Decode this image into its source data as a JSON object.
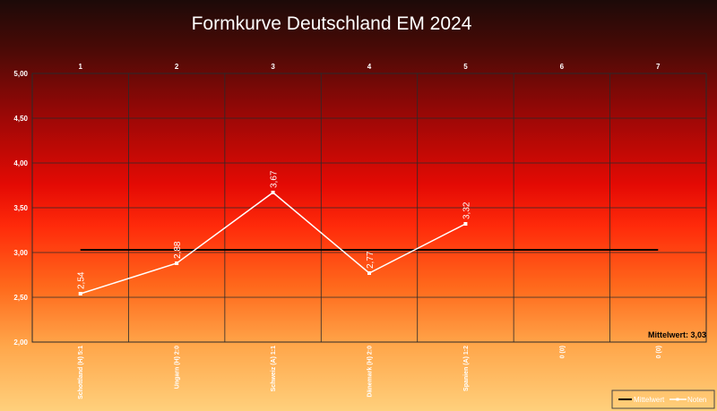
{
  "chart_data": {
    "type": "line",
    "title": "Formkurve Deutschland EM 2024",
    "x_top_ticks": [
      "1",
      "2",
      "3",
      "4",
      "5",
      "6",
      "7"
    ],
    "categories": [
      "Schottland (H) 5:1",
      "Ungarn (H) 2:0",
      "Schweiz (A) 1:1",
      "Dänemark (H) 2:0",
      "Spanien (A) 1:2",
      "0 (0)",
      "0 (0)"
    ],
    "y_ticks": [
      "2,00",
      "2,50",
      "3,00",
      "3,50",
      "4,00",
      "4,50",
      "5,00"
    ],
    "ylim": [
      2.0,
      5.0
    ],
    "grid": true,
    "legend_position": "bottom-right",
    "series": [
      {
        "name": "Noten",
        "color": "#ffffff",
        "values": [
          2.54,
          2.88,
          3.67,
          2.77,
          3.32,
          null,
          null
        ],
        "labels": [
          "2,54",
          "2,88",
          "3,67",
          "2,77",
          "3,32",
          "",
          ""
        ]
      },
      {
        "name": "Mittelwert",
        "color": "#000000",
        "values": [
          3.03,
          3.03,
          3.03,
          3.03,
          3.03,
          3.03,
          3.03
        ]
      }
    ],
    "mean_annotation": "Mittelwert: 3,03"
  }
}
